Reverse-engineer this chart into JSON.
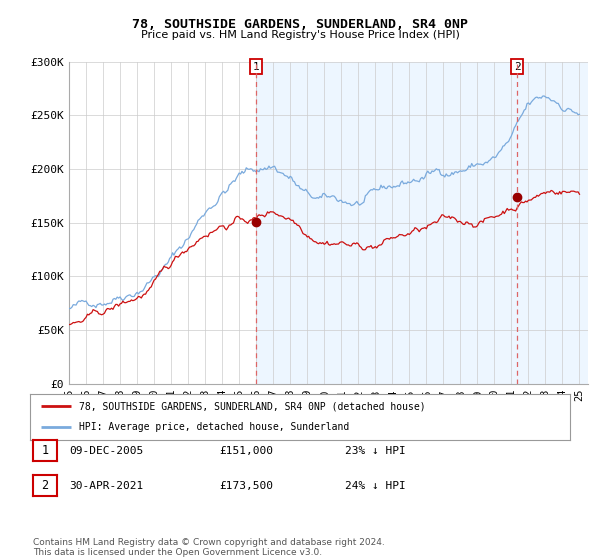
{
  "title": "78, SOUTHSIDE GARDENS, SUNDERLAND, SR4 0NP",
  "subtitle": "Price paid vs. HM Land Registry's House Price Index (HPI)",
  "legend_line1": "78, SOUTHSIDE GARDENS, SUNDERLAND, SR4 0NP (detached house)",
  "legend_line2": "HPI: Average price, detached house, Sunderland",
  "footnote": "Contains HM Land Registry data © Crown copyright and database right 2024.\nThis data is licensed under the Open Government Licence v3.0.",
  "point1_label": "1",
  "point1_date": "09-DEC-2005",
  "point1_price": "£151,000",
  "point1_hpi": "23% ↓ HPI",
  "point2_label": "2",
  "point2_date": "30-APR-2021",
  "point2_price": "£173,500",
  "point2_hpi": "24% ↓ HPI",
  "hpi_color": "#7aaadd",
  "hpi_fill_color": "#ddeeff",
  "price_color": "#cc1111",
  "marker_color": "#990000",
  "dashed_line_color": "#dd6666",
  "background_color": "#ffffff",
  "grid_color": "#cccccc",
  "ylim": [
    0,
    300000
  ],
  "xlim_start": 1995.5,
  "xlim_end": 2025.5,
  "sale1_x": 2006.0,
  "sale1_y": 151000,
  "sale2_x": 2021.33,
  "sale2_y": 173500,
  "yticks": [
    0,
    50000,
    100000,
    150000,
    200000,
    250000,
    300000
  ],
  "ytick_labels": [
    "£0",
    "£50K",
    "£100K",
    "£150K",
    "£200K",
    "£250K",
    "£300K"
  ],
  "xtick_years": [
    1995,
    1996,
    1997,
    1998,
    1999,
    2000,
    2001,
    2002,
    2003,
    2004,
    2005,
    2006,
    2007,
    2008,
    2009,
    2010,
    2011,
    2012,
    2013,
    2014,
    2015,
    2016,
    2017,
    2018,
    2019,
    2020,
    2021,
    2022,
    2023,
    2024,
    2025
  ],
  "xtick_labels": [
    "95",
    "96",
    "97",
    "98",
    "99",
    "00",
    "01",
    "02",
    "03",
    "04",
    "05",
    "06",
    "07",
    "08",
    "09",
    "10",
    "11",
    "12",
    "13",
    "14",
    "15",
    "16",
    "17",
    "18",
    "19",
    "20",
    "21",
    "22",
    "23",
    "24",
    "25"
  ]
}
